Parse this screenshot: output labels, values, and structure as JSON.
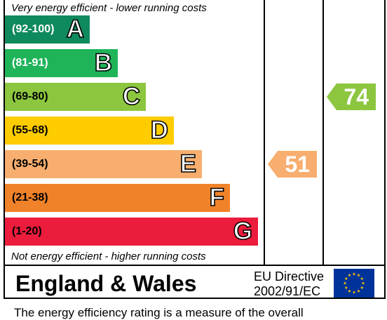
{
  "chart_data": {
    "type": "bar",
    "top_caption": "Very energy efficient - lower running costs",
    "bottom_caption": "Not energy efficient - higher running costs",
    "bands": [
      {
        "range": "(92-100)",
        "letter": "A",
        "color": "#0f8a5c",
        "range_color": "#ffffff"
      },
      {
        "range": "(81-91)",
        "letter": "B",
        "color": "#1fb45a",
        "range_color": "#ffffff"
      },
      {
        "range": "(69-80)",
        "letter": "C",
        "color": "#8cc63f",
        "range_color": "#000000"
      },
      {
        "range": "(55-68)",
        "letter": "D",
        "color": "#ffcc00",
        "range_color": "#000000"
      },
      {
        "range": "(39-54)",
        "letter": "E",
        "color": "#f7ae6e",
        "range_color": "#000000"
      },
      {
        "range": "(21-38)",
        "letter": "F",
        "color": "#f0822a",
        "range_color": "#000000"
      },
      {
        "range": "(1-20)",
        "letter": "G",
        "color": "#ec1c3c",
        "range_color": "#000000"
      }
    ],
    "current": {
      "value": 51,
      "band": "E",
      "color": "#f7ae6e"
    },
    "potential": {
      "value": 74,
      "band": "C",
      "color": "#8cc63f"
    }
  },
  "footer": {
    "region": "England & Wales",
    "directive_line1": "EU Directive",
    "directive_line2": "2002/91/EC",
    "flag_icon": "eu-flag-icon"
  },
  "clipped_text": "The energy efficiency rating is a measure of the overall"
}
